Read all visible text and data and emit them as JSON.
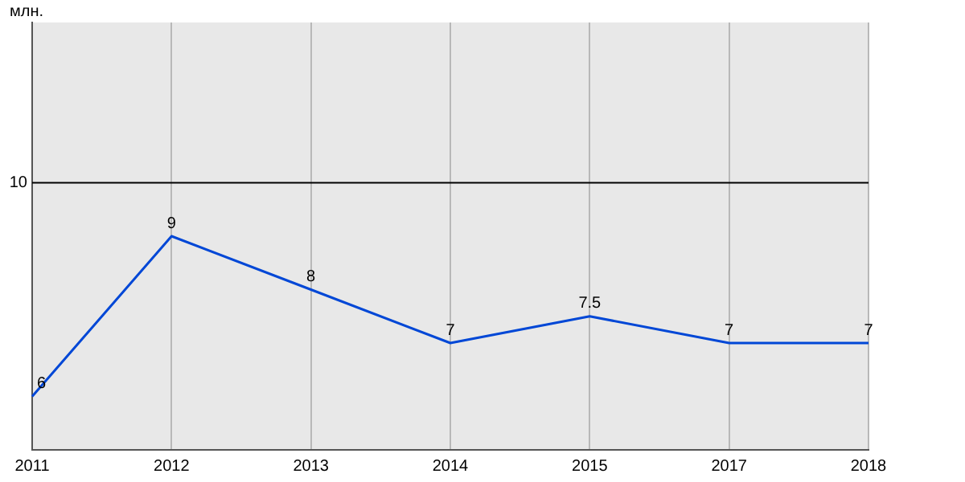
{
  "chart_data": {
    "type": "line",
    "ylabel": "млн.",
    "categories": [
      "2011",
      "2012",
      "2013",
      "2014",
      "2015",
      "2017",
      "2018"
    ],
    "series": [
      {
        "color": "#0047d6",
        "values": [
          6,
          9,
          8,
          7,
          7.5,
          7,
          7
        ]
      }
    ],
    "ylim": [
      5,
      13
    ],
    "ref_lines": [
      {
        "axis": "y",
        "value": 10,
        "label": "10"
      }
    ],
    "grid": "x",
    "data_labels": true,
    "legend": false,
    "marker": "none",
    "line_style": "solid"
  }
}
